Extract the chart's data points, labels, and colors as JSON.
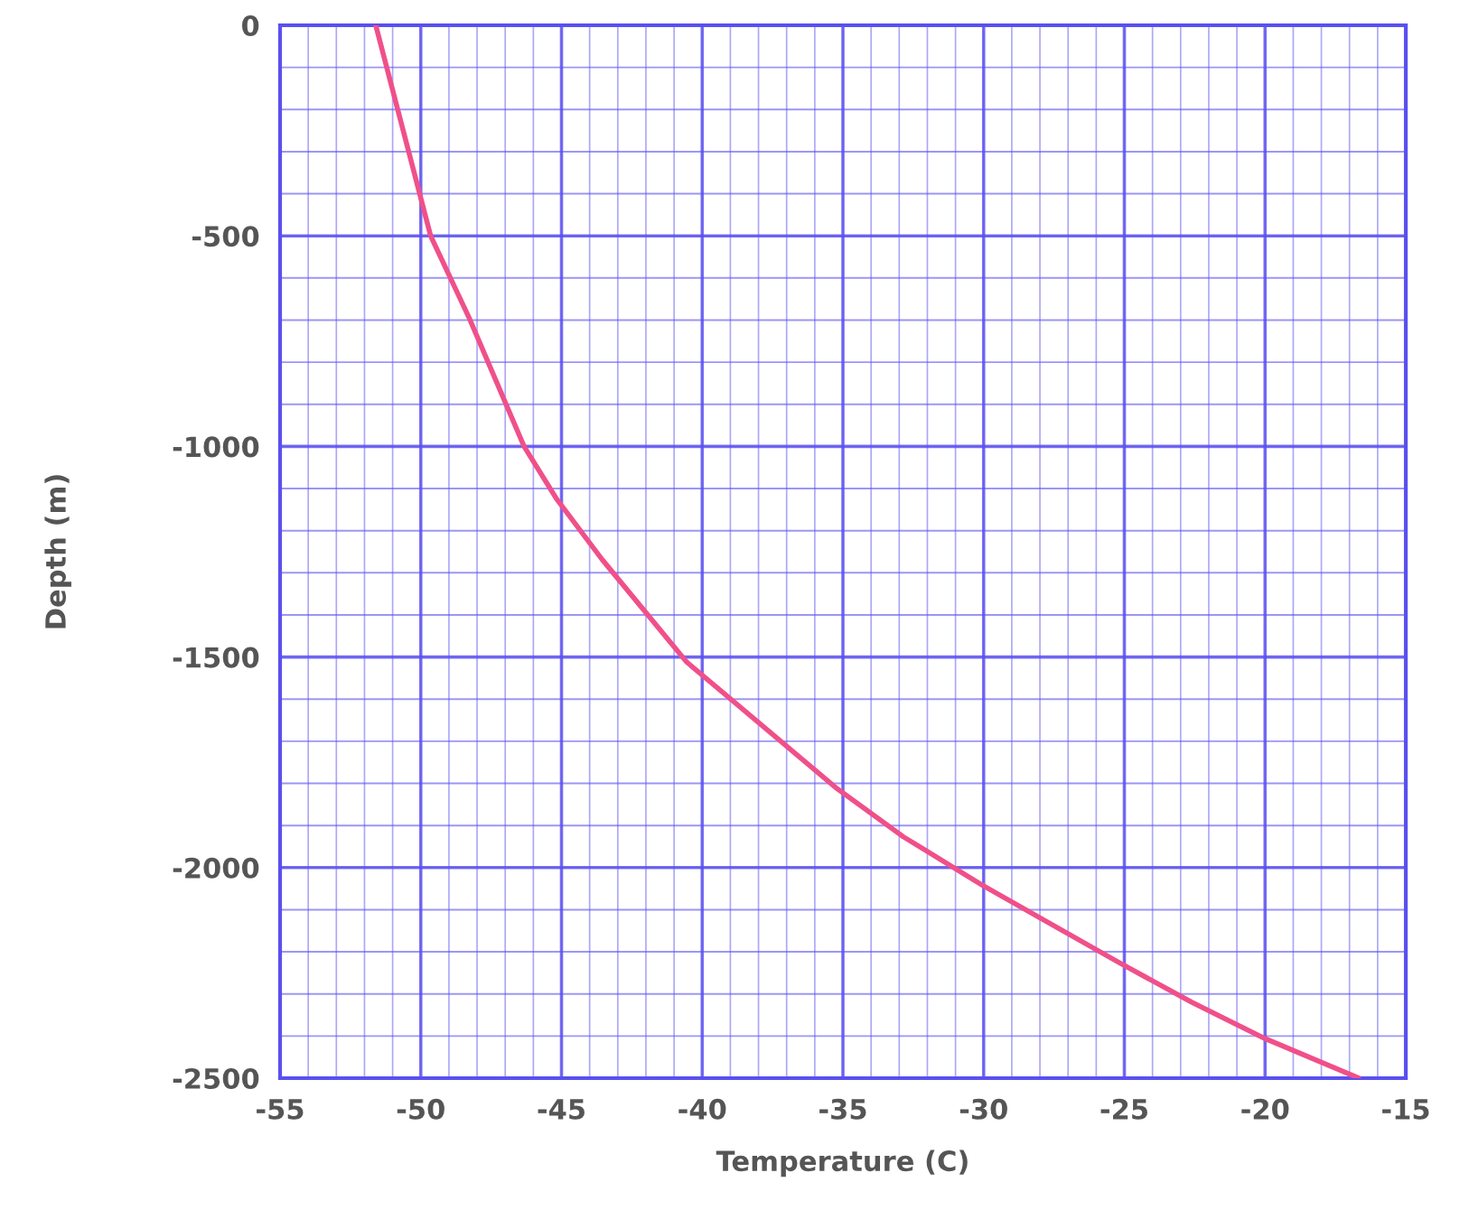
{
  "chart_data": {
    "type": "line",
    "xlabel": "Temperature (C)",
    "ylabel": "Depth (m)",
    "series": [
      {
        "color": "#f0508a",
        "x": [
          -51.6,
          -49.65,
          -48.26,
          -46.33,
          -45.16,
          -43.55,
          -40.55,
          -35.2,
          -32.85,
          -30.07,
          -25.15,
          -22.6,
          -20.0,
          -16.7
        ],
        "values": [
          0,
          -500,
          -698,
          -1000,
          -1126,
          -1269,
          -1512,
          -1813,
          -1927,
          -2041,
          -2227,
          -2320,
          -2406,
          -2499
        ]
      }
    ],
    "xlim": [
      -55,
      -15
    ],
    "xticks": [
      -55,
      -50,
      -45,
      -40,
      -35,
      -30,
      -25,
      -20,
      -15
    ],
    "ylim": [
      -2500,
      0
    ],
    "yticks": [
      -2500,
      -2000,
      -1500,
      -1000,
      -500,
      0
    ],
    "grid": true,
    "marker": "none",
    "line_style": "solid"
  }
}
